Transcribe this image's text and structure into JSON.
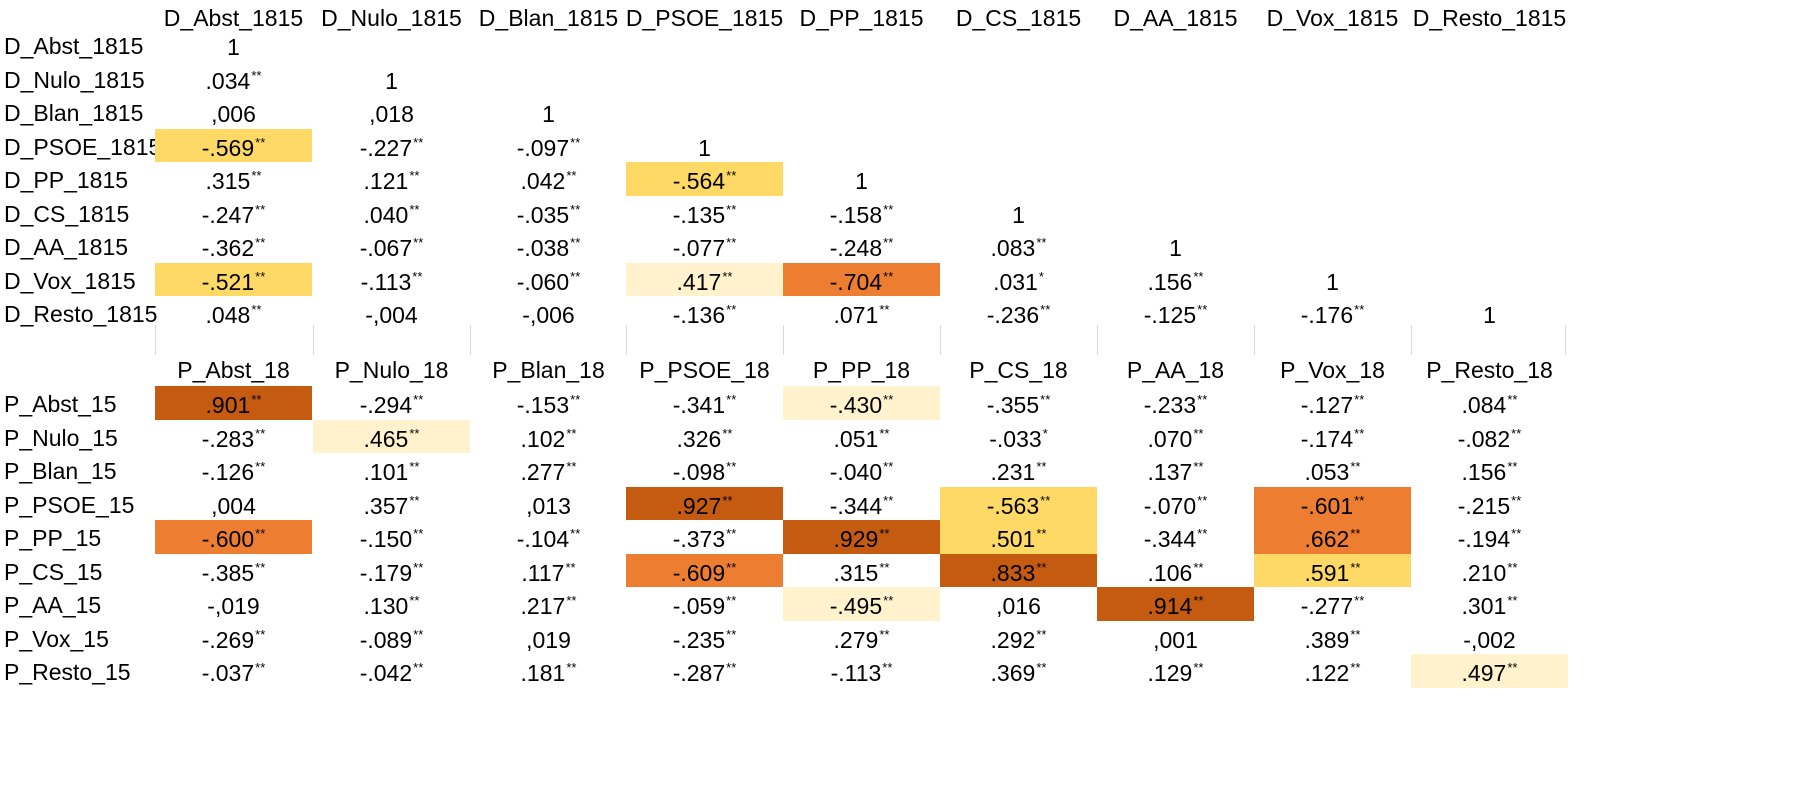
{
  "colors": {
    "light": "#fff2cc",
    "yellow": "#ffd966",
    "orange": "#ed7d31",
    "dark": "#c55a11"
  },
  "top": {
    "headers": [
      "D_Abst_1815",
      "D_Nulo_1815",
      "D_Blan_1815",
      "D_PSOE_1815",
      "D_PP_1815",
      "D_CS_1815",
      "D_AA_1815",
      "D_Vox_1815",
      "D_Resto_1815"
    ],
    "rows": [
      {
        "label": "D_Abst_1815",
        "cells": [
          {
            "v": "1",
            "s": ""
          }
        ]
      },
      {
        "label": "D_Nulo_1815",
        "cells": [
          {
            "v": ".034",
            "s": "**"
          },
          {
            "v": "1",
            "s": ""
          }
        ]
      },
      {
        "label": "D_Blan_1815",
        "cells": [
          {
            "v": ",006",
            "s": ""
          },
          {
            "v": ",018",
            "s": ""
          },
          {
            "v": "1",
            "s": ""
          }
        ]
      },
      {
        "label": "D_PSOE_1815",
        "cells": [
          {
            "v": "-.569",
            "s": "**",
            "bg": "yellow"
          },
          {
            "v": "-.227",
            "s": "**"
          },
          {
            "v": "-.097",
            "s": "**"
          },
          {
            "v": "1",
            "s": ""
          }
        ]
      },
      {
        "label": "D_PP_1815",
        "cells": [
          {
            "v": ".315",
            "s": "**"
          },
          {
            "v": ".121",
            "s": "**"
          },
          {
            "v": ".042",
            "s": "**"
          },
          {
            "v": "-.564",
            "s": "**",
            "bg": "yellow"
          },
          {
            "v": "1",
            "s": ""
          }
        ]
      },
      {
        "label": "D_CS_1815",
        "cells": [
          {
            "v": "-.247",
            "s": "**"
          },
          {
            "v": ".040",
            "s": "**"
          },
          {
            "v": "-.035",
            "s": "**"
          },
          {
            "v": "-.135",
            "s": "**"
          },
          {
            "v": "-.158",
            "s": "**"
          },
          {
            "v": "1",
            "s": ""
          }
        ]
      },
      {
        "label": "D_AA_1815",
        "cells": [
          {
            "v": "-.362",
            "s": "**"
          },
          {
            "v": "-.067",
            "s": "**"
          },
          {
            "v": "-.038",
            "s": "**"
          },
          {
            "v": "-.077",
            "s": "**"
          },
          {
            "v": "-.248",
            "s": "**"
          },
          {
            "v": ".083",
            "s": "**"
          },
          {
            "v": "1",
            "s": ""
          }
        ]
      },
      {
        "label": "D_Vox_1815",
        "cells": [
          {
            "v": "-.521",
            "s": "**",
            "bg": "yellow"
          },
          {
            "v": "-.113",
            "s": "**"
          },
          {
            "v": "-.060",
            "s": "**"
          },
          {
            "v": ".417",
            "s": "**",
            "bg": "light"
          },
          {
            "v": "-.704",
            "s": "**",
            "bg": "orange"
          },
          {
            "v": ".031",
            "s": "*"
          },
          {
            "v": ".156",
            "s": "**"
          },
          {
            "v": "1",
            "s": ""
          }
        ]
      },
      {
        "label": "D_Resto_1815",
        "cells": [
          {
            "v": ".048",
            "s": "**"
          },
          {
            "v": "-,004",
            "s": ""
          },
          {
            "v": "-,006",
            "s": ""
          },
          {
            "v": "-.136",
            "s": "**"
          },
          {
            "v": ".071",
            "s": "**"
          },
          {
            "v": "-.236",
            "s": "**"
          },
          {
            "v": "-.125",
            "s": "**"
          },
          {
            "v": "-.176",
            "s": "**"
          },
          {
            "v": "1",
            "s": ""
          }
        ]
      }
    ]
  },
  "bottom": {
    "headers": [
      "P_Abst_18",
      "P_Nulo_18",
      "P_Blan_18",
      "P_PSOE_18",
      "P_PP_18",
      "P_CS_18",
      "P_AA_18",
      "P_Vox_18",
      "P_Resto_18"
    ],
    "rows": [
      {
        "label": "P_Abst_15",
        "cells": [
          {
            "v": ".901",
            "s": "**",
            "bg": "dark"
          },
          {
            "v": "-.294",
            "s": "**"
          },
          {
            "v": "-.153",
            "s": "**"
          },
          {
            "v": "-.341",
            "s": "**"
          },
          {
            "v": "-.430",
            "s": "**",
            "bg": "light"
          },
          {
            "v": "-.355",
            "s": "**"
          },
          {
            "v": "-.233",
            "s": "**"
          },
          {
            "v": "-.127",
            "s": "**"
          },
          {
            "v": ".084",
            "s": "**"
          }
        ]
      },
      {
        "label": "P_Nulo_15",
        "cells": [
          {
            "v": "-.283",
            "s": "**"
          },
          {
            "v": ".465",
            "s": "**",
            "bg": "light"
          },
          {
            "v": ".102",
            "s": "**"
          },
          {
            "v": ".326",
            "s": "**"
          },
          {
            "v": ".051",
            "s": "**"
          },
          {
            "v": "-.033",
            "s": "*"
          },
          {
            "v": ".070",
            "s": "**"
          },
          {
            "v": "-.174",
            "s": "**"
          },
          {
            "v": "-.082",
            "s": "**"
          }
        ]
      },
      {
        "label": "P_Blan_15",
        "cells": [
          {
            "v": "-.126",
            "s": "**"
          },
          {
            "v": ".101",
            "s": "**"
          },
          {
            "v": ".277",
            "s": "**"
          },
          {
            "v": "-.098",
            "s": "**"
          },
          {
            "v": "-.040",
            "s": "**"
          },
          {
            "v": ".231",
            "s": "**"
          },
          {
            "v": ".137",
            "s": "**"
          },
          {
            "v": ".053",
            "s": "**"
          },
          {
            "v": ".156",
            "s": "**"
          }
        ]
      },
      {
        "label": "P_PSOE_15",
        "cells": [
          {
            "v": ",004",
            "s": ""
          },
          {
            "v": ".357",
            "s": "**"
          },
          {
            "v": ",013",
            "s": ""
          },
          {
            "v": ".927",
            "s": "**",
            "bg": "dark"
          },
          {
            "v": "-.344",
            "s": "**"
          },
          {
            "v": "-.563",
            "s": "**",
            "bg": "yellow"
          },
          {
            "v": "-.070",
            "s": "**"
          },
          {
            "v": "-.601",
            "s": "**",
            "bg": "orange"
          },
          {
            "v": "-.215",
            "s": "**"
          }
        ]
      },
      {
        "label": "P_PP_15",
        "cells": [
          {
            "v": "-.600",
            "s": "**",
            "bg": "orange"
          },
          {
            "v": "-.150",
            "s": "**"
          },
          {
            "v": "-.104",
            "s": "**"
          },
          {
            "v": "-.373",
            "s": "**"
          },
          {
            "v": ".929",
            "s": "**",
            "bg": "dark"
          },
          {
            "v": ".501",
            "s": "**",
            "bg": "yellow"
          },
          {
            "v": "-.344",
            "s": "**"
          },
          {
            "v": ".662",
            "s": "**",
            "bg": "orange"
          },
          {
            "v": "-.194",
            "s": "**"
          }
        ]
      },
      {
        "label": "P_CS_15",
        "cells": [
          {
            "v": "-.385",
            "s": "**"
          },
          {
            "v": "-.179",
            "s": "**"
          },
          {
            "v": ".117",
            "s": "**"
          },
          {
            "v": "-.609",
            "s": "**",
            "bg": "orange"
          },
          {
            "v": ".315",
            "s": "**"
          },
          {
            "v": ".833",
            "s": "**",
            "bg": "dark"
          },
          {
            "v": ".106",
            "s": "**"
          },
          {
            "v": ".591",
            "s": "**",
            "bg": "yellow"
          },
          {
            "v": ".210",
            "s": "**"
          }
        ]
      },
      {
        "label": "P_AA_15",
        "cells": [
          {
            "v": "-,019",
            "s": ""
          },
          {
            "v": ".130",
            "s": "**"
          },
          {
            "v": ".217",
            "s": "**"
          },
          {
            "v": "-.059",
            "s": "**"
          },
          {
            "v": "-.495",
            "s": "**",
            "bg": "light"
          },
          {
            "v": ",016",
            "s": ""
          },
          {
            "v": ".914",
            "s": "**",
            "bg": "dark"
          },
          {
            "v": "-.277",
            "s": "**"
          },
          {
            "v": ".301",
            "s": "**"
          }
        ]
      },
      {
        "label": "P_Vox_15",
        "cells": [
          {
            "v": "-.269",
            "s": "**"
          },
          {
            "v": "-.089",
            "s": "**"
          },
          {
            "v": ",019",
            "s": ""
          },
          {
            "v": "-.235",
            "s": "**"
          },
          {
            "v": ".279",
            "s": "**"
          },
          {
            "v": ".292",
            "s": "**"
          },
          {
            "v": ",001",
            "s": ""
          },
          {
            "v": ".389",
            "s": "**"
          },
          {
            "v": "-,002",
            "s": ""
          }
        ]
      },
      {
        "label": "P_Resto_15",
        "cells": [
          {
            "v": "-.037",
            "s": "**"
          },
          {
            "v": "-.042",
            "s": "**"
          },
          {
            "v": ".181",
            "s": "**"
          },
          {
            "v": "-.287",
            "s": "**"
          },
          {
            "v": "-.113",
            "s": "**"
          },
          {
            "v": ".369",
            "s": "**"
          },
          {
            "v": ".129",
            "s": "**"
          },
          {
            "v": ".122",
            "s": "**"
          },
          {
            "v": ".497",
            "s": "**",
            "bg": "light"
          }
        ]
      }
    ]
  }
}
